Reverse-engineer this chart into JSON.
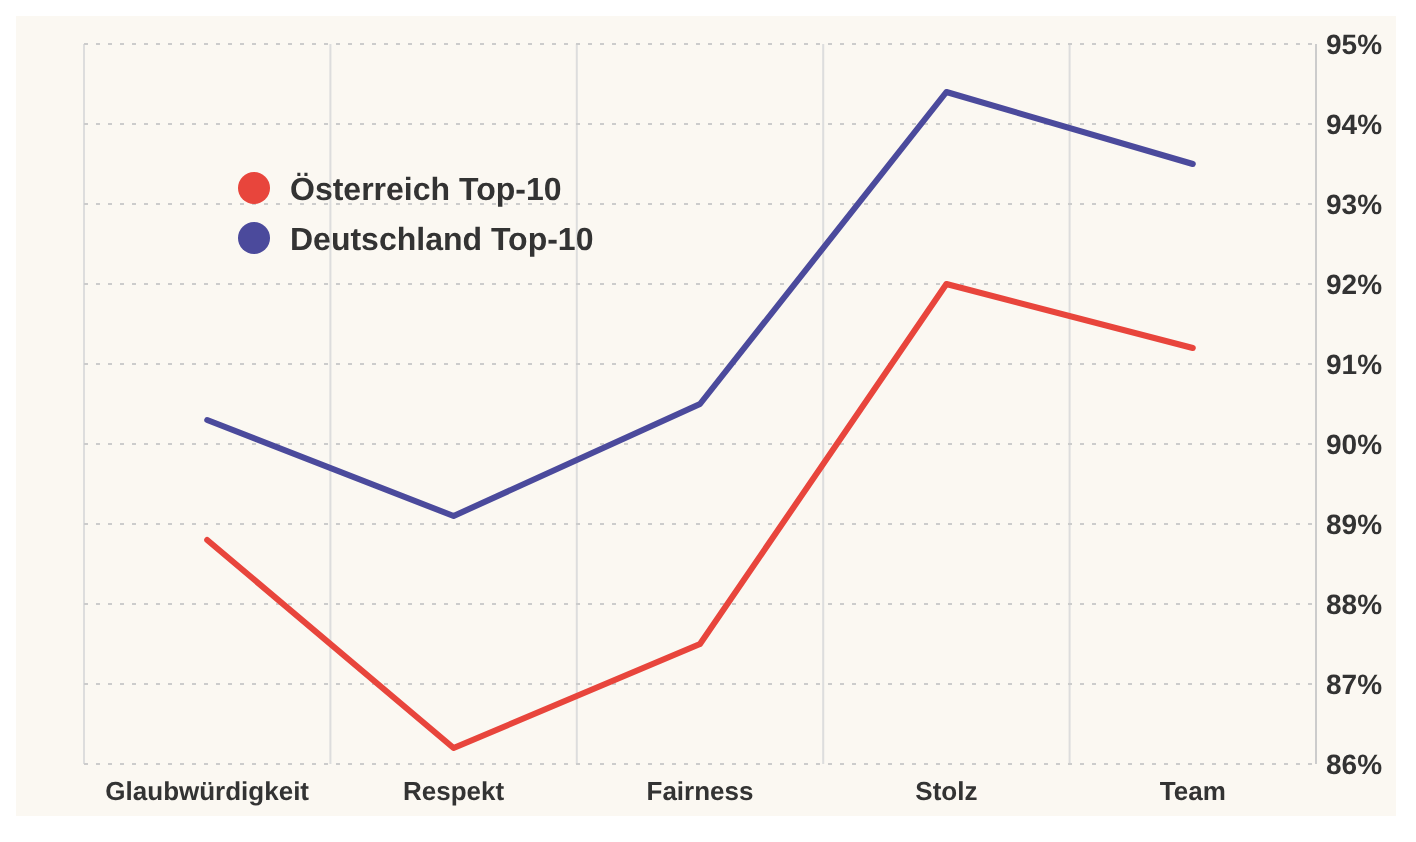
{
  "chart_data": {
    "type": "line",
    "categories": [
      "Glaubwürdigkeit",
      "Respekt",
      "Fairness",
      "Stolz",
      "Team"
    ],
    "series": [
      {
        "name": "Österreich Top-10",
        "color": "#e8453c",
        "values": [
          88.8,
          86.2,
          87.5,
          92.0,
          91.2
        ]
      },
      {
        "name": "Deutschland Top-10",
        "color": "#4b4a9c",
        "values": [
          90.3,
          89.1,
          90.5,
          94.4,
          93.5
        ]
      }
    ],
    "ylim": [
      86,
      95
    ],
    "yticks": [
      {
        "value": 86,
        "label": "86%"
      },
      {
        "value": 87,
        "label": "87%"
      },
      {
        "value": 88,
        "label": "88%"
      },
      {
        "value": 89,
        "label": "89%"
      },
      {
        "value": 90,
        "label": "90%"
      },
      {
        "value": 91,
        "label": "91%"
      },
      {
        "value": 92,
        "label": "92%"
      },
      {
        "value": 93,
        "label": "93%"
      },
      {
        "value": 94,
        "label": "94%"
      },
      {
        "value": 95,
        "label": "95%"
      }
    ],
    "grid": true,
    "legend": "top left"
  }
}
